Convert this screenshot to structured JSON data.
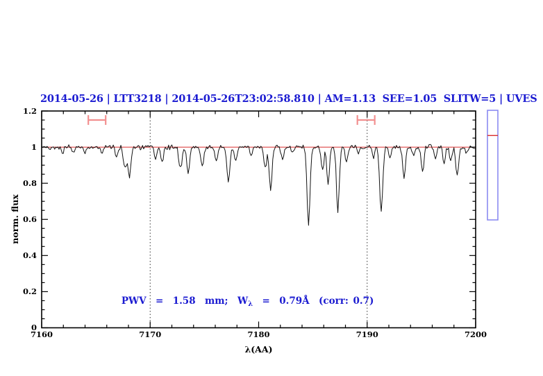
{
  "colors": {
    "text_blue": "#1b1bd1",
    "axis_black": "#000000",
    "spectrum_black": "#111111",
    "reference_red": "#d92b2b",
    "marker_salmon": "#f29090",
    "side_box_blue": "#8a8af2",
    "background": "#ffffff"
  },
  "header": {
    "title": "2014-05-26 | LTT3218 | 2014-05-26T23:02:58.810 | AM=1.13  SEE=1.05  SLITW=5 | UVES"
  },
  "annotation": {
    "part1": "PWV  =  1.58  mm;  W",
    "subscript": "λ",
    "part2": "  =  0.79Å  (corr: 0.7)"
  },
  "axes": {
    "xlabel": "λ(AA)",
    "ylabel": "norm. flux",
    "x_tick_values": [
      7160,
      7170,
      7180,
      7190,
      7200
    ],
    "x_tick_labels": [
      "7160",
      "7170",
      "7180",
      "7190",
      "7200"
    ],
    "y_tick_values": [
      0,
      0.2,
      0.4,
      0.6,
      0.8,
      1,
      1.2
    ],
    "y_tick_labels": [
      "0",
      "0.2",
      "0.4",
      "0.6",
      "0.8",
      "1",
      "1.2"
    ]
  },
  "chart_data": {
    "type": "line",
    "title": "2014-05-26 | LTT3218 | 2014-05-26T23:02:58.810 | AM=1.13  SEE=1.05  SLITW=5 | UVES",
    "xlabel": "λ(AA)",
    "ylabel": "norm. flux",
    "xlim": [
      7160,
      7200
    ],
    "ylim": [
      0,
      1.2
    ],
    "grid": false,
    "x_minor_tick_step": 2,
    "x_major_tick_step": 10,
    "y_minor_tick_step": 0.05,
    "y_major_tick_step": 0.2,
    "series_description": "Normalized telluric absorption spectrum: continuum at 1.0 with photon noise; absorption_lines entries are [wavelength_A, line_depth, sigma_A]",
    "continuum_level": 1.0,
    "noise_amplitude": 0.02,
    "noise_seed": 42,
    "sample_step": 0.1,
    "absorption_lines": [
      [
        7161.9,
        0.035,
        0.1
      ],
      [
        7162.9,
        0.04,
        0.1
      ],
      [
        7164.0,
        0.035,
        0.1
      ],
      [
        7165.6,
        0.03,
        0.1
      ],
      [
        7166.9,
        0.06,
        0.12
      ],
      [
        7167.7,
        0.12,
        0.15
      ],
      [
        7168.1,
        0.16,
        0.12
      ],
      [
        7170.5,
        0.07,
        0.12
      ],
      [
        7171.1,
        0.09,
        0.12
      ],
      [
        7172.8,
        0.12,
        0.14
      ],
      [
        7173.5,
        0.145,
        0.13
      ],
      [
        7174.8,
        0.11,
        0.13
      ],
      [
        7176.1,
        0.08,
        0.12
      ],
      [
        7177.2,
        0.19,
        0.15
      ],
      [
        7177.9,
        0.08,
        0.12
      ],
      [
        7179.3,
        0.04,
        0.1
      ],
      [
        7180.6,
        0.12,
        0.13
      ],
      [
        7181.1,
        0.24,
        0.13
      ],
      [
        7182.2,
        0.06,
        0.12
      ],
      [
        7183.1,
        0.035,
        0.1
      ],
      [
        7184.6,
        0.42,
        0.14
      ],
      [
        7185.9,
        0.13,
        0.12
      ],
      [
        7186.4,
        0.21,
        0.12
      ],
      [
        7187.3,
        0.36,
        0.13
      ],
      [
        7188.1,
        0.08,
        0.12
      ],
      [
        7189.2,
        0.04,
        0.1
      ],
      [
        7190.6,
        0.06,
        0.11
      ],
      [
        7191.3,
        0.36,
        0.14
      ],
      [
        7192.1,
        0.07,
        0.11
      ],
      [
        7193.4,
        0.17,
        0.13
      ],
      [
        7194.3,
        0.05,
        0.11
      ],
      [
        7195.1,
        0.14,
        0.13
      ],
      [
        7196.3,
        0.06,
        0.11
      ],
      [
        7197.1,
        0.09,
        0.12
      ],
      [
        7197.7,
        0.07,
        0.11
      ],
      [
        7198.3,
        0.16,
        0.13
      ],
      [
        7199.2,
        0.035,
        0.1
      ]
    ],
    "dotted_vlines": [
      7170,
      7190
    ],
    "reference_line_flux": 1.0,
    "range_markers": [
      {
        "center": 7165.1,
        "half_width": 0.8,
        "flux": 1.15
      },
      {
        "center": 7189.9,
        "half_width": 0.8,
        "flux": 1.15
      }
    ]
  },
  "side_panel": {
    "description": "narrow vertical indicator box right of plot with red level mark",
    "red_mark_fraction_from_top": 0.23
  }
}
